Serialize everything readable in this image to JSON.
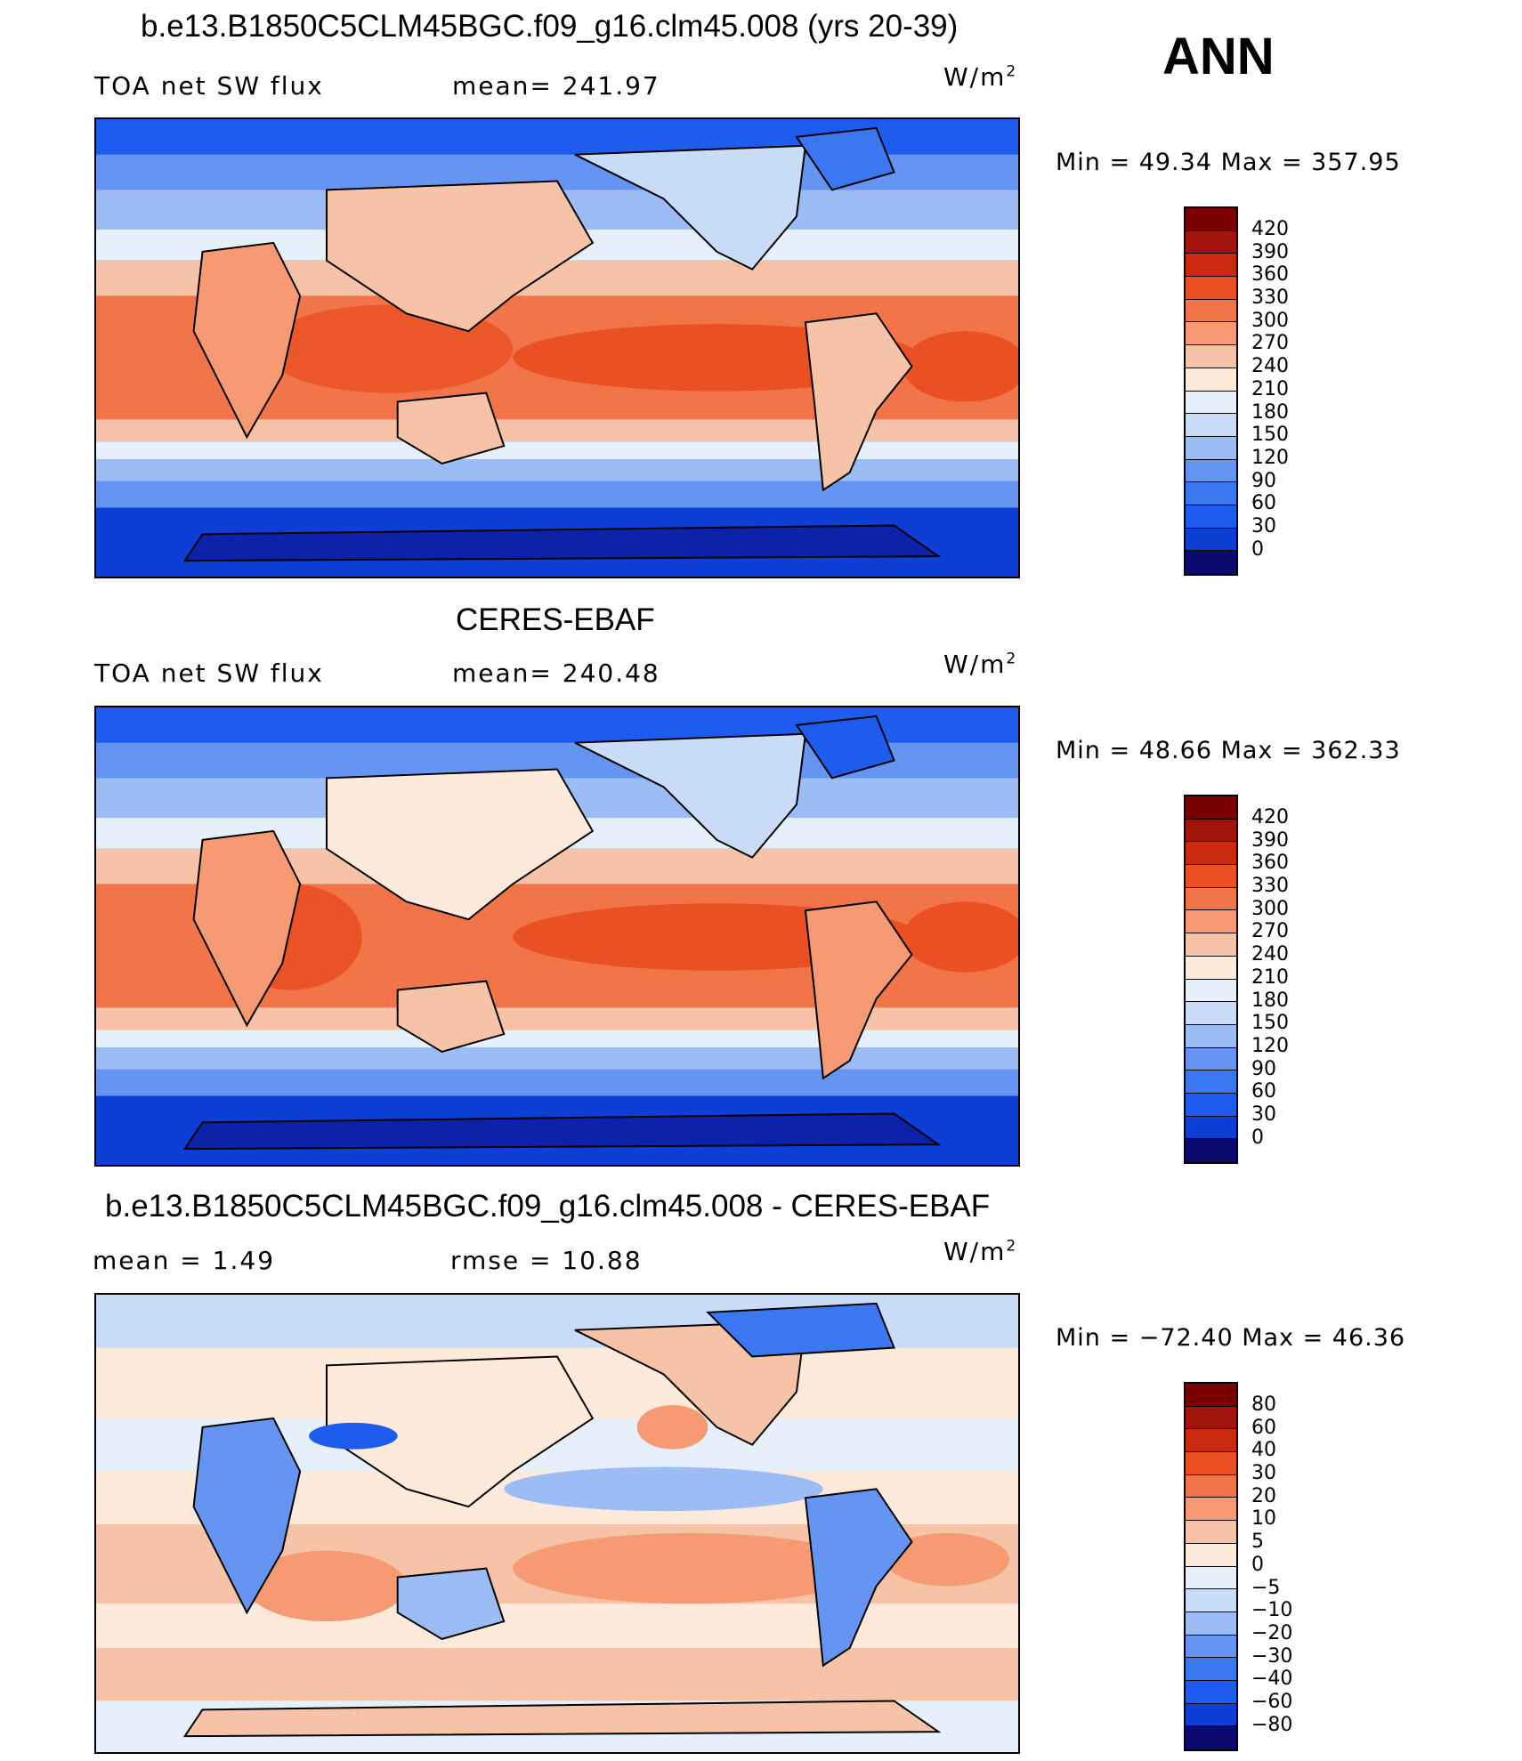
{
  "season": "ANN",
  "colors": {
    "abs_scale": [
      "#0a0a6e",
      "#0a23a8",
      "#0d3ed6",
      "#1e5cf0",
      "#3a78f2",
      "#6495f2",
      "#9bbcf5",
      "#c8dcf8",
      "#e6f0fb",
      "#fdeadb",
      "#f7c3a6",
      "#f59a73",
      "#f2754a",
      "#ea5022",
      "#cc2a0e",
      "#a0140a",
      "#7a0000"
    ],
    "diff_scale": [
      "#0a0a6e",
      "#0a23a8",
      "#0d3ed6",
      "#1e5cf0",
      "#3a78f2",
      "#6495f2",
      "#9bbcf5",
      "#c8dcf8",
      "#e6f0fb",
      "#fdeadb",
      "#f7c3a6",
      "#f59a73",
      "#f2754a",
      "#ea5022",
      "#cc2a0e",
      "#a0140a",
      "#7a0000"
    ]
  },
  "panels": [
    {
      "title": "b.e13.B1850C5CLM45BGC.f09_g16.clm45.008 (yrs 20-39)",
      "left_label": "TOA net SW flux",
      "center_label": "mean= 241.97",
      "units": "W/m",
      "units_exp": "2",
      "minmax": "Min =   49.34 Max = 357.95",
      "colorbar_labels": [
        "420",
        "390",
        "360",
        "330",
        "300",
        "270",
        "240",
        "210",
        "180",
        "150",
        "120",
        "90",
        "60",
        "30",
        "0"
      ]
    },
    {
      "title": "CERES-EBAF",
      "left_label": "TOA net SW flux",
      "center_label": "mean= 240.48",
      "units": "W/m",
      "units_exp": "2",
      "minmax": "Min =   48.66 Max = 362.33",
      "colorbar_labels": [
        "420",
        "390",
        "360",
        "330",
        "300",
        "270",
        "240",
        "210",
        "180",
        "150",
        "120",
        "90",
        "60",
        "30",
        "0"
      ]
    },
    {
      "title": "b.e13.B1850C5CLM45BGC.f09_g16.clm45.008 - CERES-EBAF",
      "left_label": "mean =     1.49",
      "center_label": "rmse =    10.88",
      "units": "W/m",
      "units_exp": "2",
      "minmax": "Min = −72.40 Max =   46.36",
      "colorbar_labels": [
        "80",
        "60",
        "40",
        "30",
        "20",
        "10",
        "5",
        "0",
        "−5",
        "−10",
        "−20",
        "−30",
        "−40",
        "−60",
        "−80"
      ]
    }
  ]
}
